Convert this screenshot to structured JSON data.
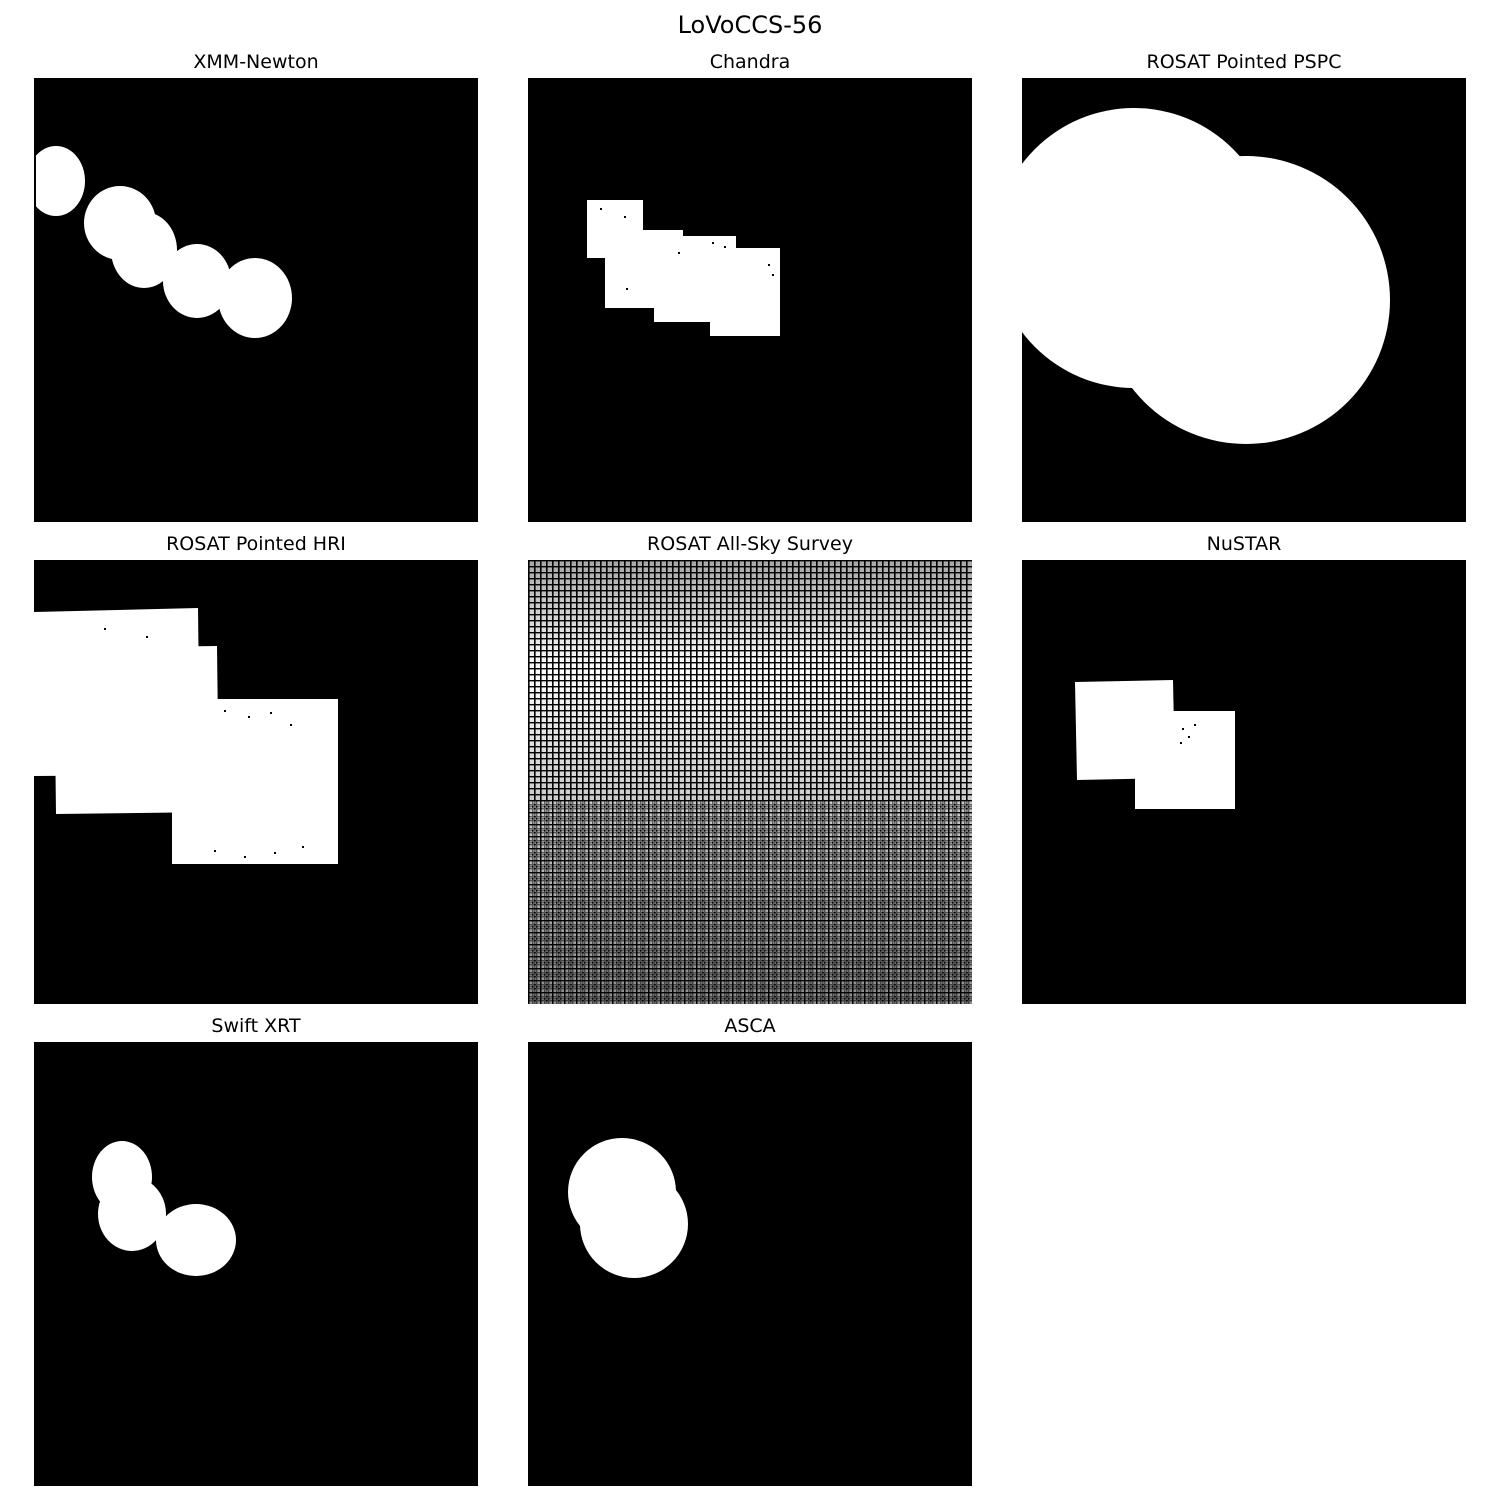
{
  "figure": {
    "title": "LoVoCCS-56"
  },
  "panels": [
    {
      "title": "XMM-Newton",
      "background": "#000000",
      "foreground": "#ffffff"
    },
    {
      "title": "Chandra",
      "background": "#000000",
      "foreground": "#ffffff"
    },
    {
      "title": "ROSAT Pointed PSPC",
      "background": "#000000",
      "foreground": "#ffffff"
    },
    {
      "title": "ROSAT Pointed HRI",
      "background": "#000000",
      "foreground": "#ffffff"
    },
    {
      "title": "ROSAT All-Sky Survey",
      "background": "#000000",
      "foreground": "#ffffff"
    },
    {
      "title": "NuSTAR",
      "background": "#000000",
      "foreground": "#ffffff"
    },
    {
      "title": "Swift XRT",
      "background": "#000000",
      "foreground": "#ffffff"
    },
    {
      "title": "ASCA",
      "background": "#000000",
      "foreground": "#ffffff"
    }
  ]
}
